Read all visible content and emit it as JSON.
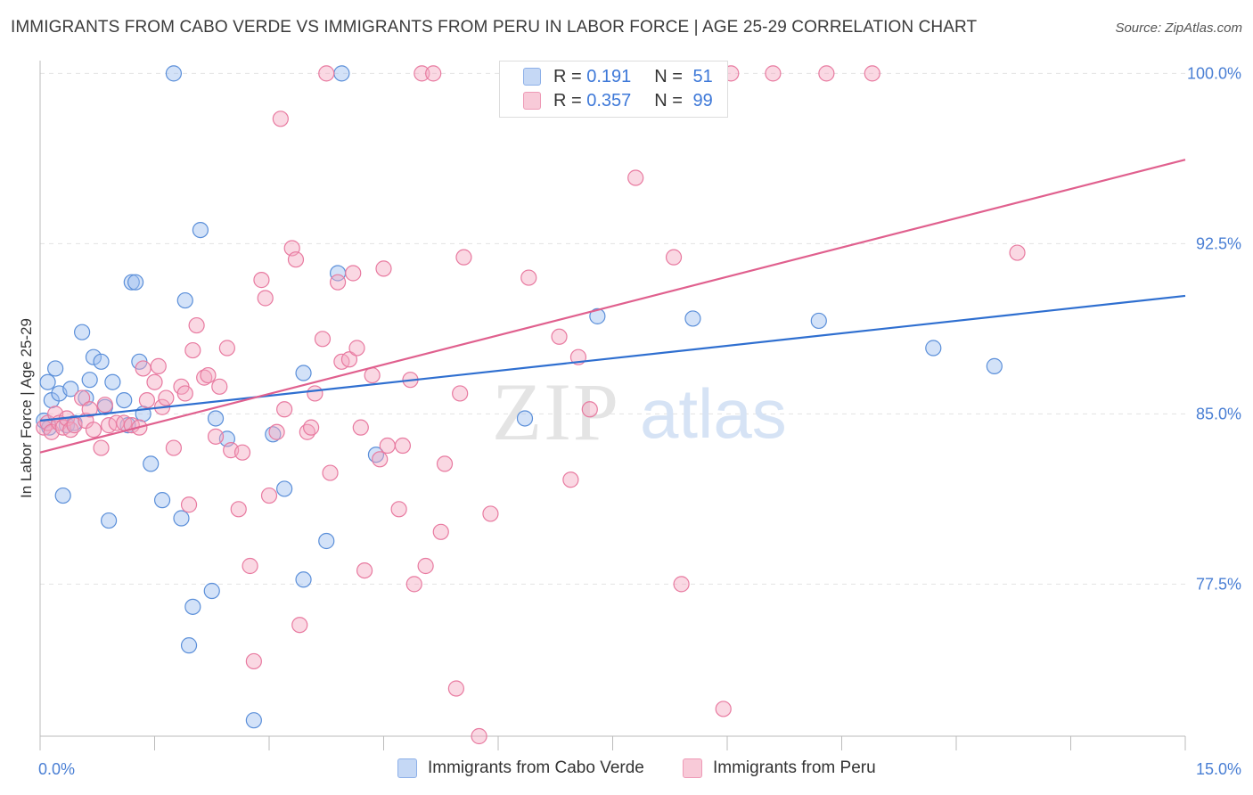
{
  "title": "IMMIGRANTS FROM CABO VERDE VS IMMIGRANTS FROM PERU IN LABOR FORCE | AGE 25-29 CORRELATION CHART",
  "source": "Source: ZipAtlas.com",
  "watermark": {
    "zip": "ZIP",
    "atlas": "atlas"
  },
  "legend": {
    "rows": [
      {
        "r_label": "R = ",
        "r_value": "0.191",
        "n_label": "N = ",
        "n_value": "51",
        "color": "#9dbfef"
      },
      {
        "r_label": "R = ",
        "r_value": "0.357",
        "n_label": "N = ",
        "n_value": "99",
        "color": "#f4a9c0"
      }
    ]
  },
  "chart_data": {
    "type": "scatter",
    "title": "IMMIGRANTS FROM CABO VERDE VS IMMIGRANTS FROM PERU IN LABOR FORCE | AGE 25-29 CORRELATION CHART",
    "xlabel": "",
    "ylabel": "In Labor Force | Age 25-29",
    "xlim": [
      0,
      15
    ],
    "ylim": [
      70.8,
      100.8
    ],
    "x_tick_labels": [
      "0.0%",
      "15.0%"
    ],
    "y_ticks": [
      77.5,
      85.0,
      92.5,
      100.0
    ],
    "y_tick_labels": [
      "77.5%",
      "85.0%",
      "92.5%",
      "100.0%"
    ],
    "grid": true,
    "legend_position": "bottom",
    "series": [
      {
        "name": "Immigrants from Cabo Verde",
        "color": "#9dbfef",
        "stroke": "#5b8fd9",
        "trend_color": "#2f6fd0",
        "trend": {
          "x": [
            0,
            15
          ],
          "y": [
            84.7,
            90.2
          ]
        },
        "points": [
          [
            0.05,
            84.7
          ],
          [
            0.1,
            86.4
          ],
          [
            0.15,
            85.6
          ],
          [
            0.2,
            87.0
          ],
          [
            0.25,
            85.9
          ],
          [
            0.3,
            81.4
          ],
          [
            0.35,
            84.5
          ],
          [
            0.4,
            86.1
          ],
          [
            0.45,
            84.6
          ],
          [
            0.55,
            88.6
          ],
          [
            0.6,
            85.7
          ],
          [
            0.65,
            86.5
          ],
          [
            0.7,
            87.5
          ],
          [
            0.8,
            87.3
          ],
          [
            0.85,
            85.3
          ],
          [
            0.9,
            80.3
          ],
          [
            0.95,
            86.4
          ],
          [
            1.1,
            85.6
          ],
          [
            1.15,
            84.5
          ],
          [
            1.2,
            90.8
          ],
          [
            1.25,
            90.8
          ],
          [
            1.3,
            87.3
          ],
          [
            1.35,
            85.0
          ],
          [
            1.45,
            82.8
          ],
          [
            1.6,
            81.2
          ],
          [
            1.75,
            100.0
          ],
          [
            1.85,
            80.4
          ],
          [
            1.9,
            90.0
          ],
          [
            1.95,
            74.8
          ],
          [
            2.0,
            76.5
          ],
          [
            2.1,
            93.1
          ],
          [
            2.25,
            77.2
          ],
          [
            2.3,
            84.8
          ],
          [
            2.45,
            83.9
          ],
          [
            2.8,
            71.5
          ],
          [
            3.05,
            84.1
          ],
          [
            3.2,
            81.7
          ],
          [
            3.45,
            77.7
          ],
          [
            3.45,
            86.8
          ],
          [
            3.95,
            100.0
          ],
          [
            3.9,
            91.2
          ],
          [
            3.75,
            79.4
          ],
          [
            4.4,
            83.2
          ],
          [
            6.35,
            84.8
          ],
          [
            6.5,
            100.0
          ],
          [
            7.3,
            89.3
          ],
          [
            8.55,
            89.2
          ],
          [
            10.2,
            89.1
          ],
          [
            11.7,
            87.9
          ],
          [
            12.5,
            87.1
          ],
          [
            0.12,
            84.4
          ]
        ]
      },
      {
        "name": "Immigrants from Peru",
        "color": "#f4a9c0",
        "stroke": "#e87aa0",
        "trend_color": "#e0608e",
        "trend": {
          "x": [
            0,
            15
          ],
          "y": [
            83.3,
            96.2
          ]
        },
        "points": [
          [
            0.05,
            84.4
          ],
          [
            0.1,
            84.6
          ],
          [
            0.15,
            84.2
          ],
          [
            0.2,
            85.0
          ],
          [
            0.25,
            84.6
          ],
          [
            0.3,
            84.4
          ],
          [
            0.35,
            84.8
          ],
          [
            0.4,
            84.3
          ],
          [
            0.45,
            84.5
          ],
          [
            0.55,
            85.7
          ],
          [
            0.6,
            84.7
          ],
          [
            0.65,
            85.2
          ],
          [
            0.7,
            84.3
          ],
          [
            0.8,
            83.5
          ],
          [
            0.85,
            85.4
          ],
          [
            0.9,
            84.5
          ],
          [
            1.0,
            84.6
          ],
          [
            1.1,
            84.6
          ],
          [
            1.2,
            84.5
          ],
          [
            1.3,
            84.4
          ],
          [
            1.35,
            87.0
          ],
          [
            1.4,
            85.6
          ],
          [
            1.5,
            86.4
          ],
          [
            1.55,
            87.1
          ],
          [
            1.6,
            85.3
          ],
          [
            1.65,
            85.7
          ],
          [
            1.75,
            83.5
          ],
          [
            1.85,
            86.2
          ],
          [
            1.9,
            85.9
          ],
          [
            1.95,
            81.0
          ],
          [
            2.0,
            87.8
          ],
          [
            2.05,
            88.9
          ],
          [
            2.15,
            86.6
          ],
          [
            2.2,
            86.7
          ],
          [
            2.3,
            84.0
          ],
          [
            2.35,
            86.2
          ],
          [
            2.45,
            87.9
          ],
          [
            2.5,
            83.4
          ],
          [
            2.6,
            80.8
          ],
          [
            2.65,
            83.3
          ],
          [
            2.75,
            78.3
          ],
          [
            2.8,
            74.1
          ],
          [
            2.9,
            90.9
          ],
          [
            2.95,
            90.1
          ],
          [
            3.0,
            81.4
          ],
          [
            3.1,
            84.2
          ],
          [
            3.15,
            98.0
          ],
          [
            3.2,
            85.2
          ],
          [
            3.3,
            92.3
          ],
          [
            3.35,
            91.8
          ],
          [
            3.4,
            75.7
          ],
          [
            3.5,
            84.2
          ],
          [
            3.55,
            84.4
          ],
          [
            3.6,
            85.9
          ],
          [
            3.7,
            88.3
          ],
          [
            3.75,
            100.0
          ],
          [
            3.8,
            82.4
          ],
          [
            3.9,
            90.8
          ],
          [
            3.95,
            87.3
          ],
          [
            4.05,
            87.4
          ],
          [
            4.1,
            91.2
          ],
          [
            4.15,
            87.9
          ],
          [
            4.25,
            78.1
          ],
          [
            4.35,
            86.7
          ],
          [
            4.45,
            83.0
          ],
          [
            4.5,
            91.4
          ],
          [
            4.55,
            83.6
          ],
          [
            4.7,
            80.8
          ],
          [
            4.75,
            83.6
          ],
          [
            4.85,
            86.5
          ],
          [
            4.9,
            77.5
          ],
          [
            5.0,
            100.0
          ],
          [
            5.05,
            78.3
          ],
          [
            5.15,
            100.0
          ],
          [
            5.25,
            79.8
          ],
          [
            5.3,
            82.8
          ],
          [
            5.45,
            72.9
          ],
          [
            5.5,
            85.9
          ],
          [
            5.55,
            91.9
          ],
          [
            5.75,
            70.8
          ],
          [
            5.9,
            80.6
          ],
          [
            6.4,
            91.0
          ],
          [
            6.55,
            100.0
          ],
          [
            6.8,
            88.4
          ],
          [
            6.95,
            82.1
          ],
          [
            7.05,
            87.5
          ],
          [
            7.2,
            85.2
          ],
          [
            7.5,
            100.0
          ],
          [
            7.8,
            95.4
          ],
          [
            8.3,
            91.9
          ],
          [
            8.4,
            77.5
          ],
          [
            8.7,
            100.0
          ],
          [
            8.95,
            72.0
          ],
          [
            9.05,
            100.0
          ],
          [
            9.6,
            100.0
          ],
          [
            10.3,
            100.0
          ],
          [
            10.9,
            100.0
          ],
          [
            12.8,
            92.1
          ],
          [
            4.2,
            84.4
          ]
        ]
      }
    ]
  },
  "bottom_legend": [
    {
      "label": "Immigrants from Cabo Verde",
      "color": "#c5d8f5",
      "stroke": "#8db0e8"
    },
    {
      "label": "Immigrants from Peru",
      "color": "#f8cad8",
      "stroke": "#ee9ab6"
    }
  ]
}
